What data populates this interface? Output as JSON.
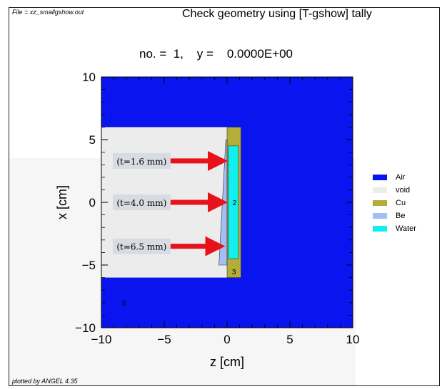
{
  "file_label": "File = xz_smallgshow.out",
  "plotted_by": "plotted by ANGEL 4.35",
  "title": "Check geometry using [T-gshow] tally",
  "subtitle": "no. =  1,    y =    0.0000E+00",
  "chart_data": {
    "type": "heatmap",
    "title": "Check geometry using [T-gshow] tally",
    "xlabel": "z [cm]",
    "ylabel": "x [cm]",
    "xlim": [
      -10,
      10
    ],
    "ylim": [
      -10,
      10
    ],
    "xticks": [
      -10,
      -5,
      0,
      5,
      10
    ],
    "yticks": [
      -10,
      -5,
      0,
      5,
      10
    ],
    "xtick_labels": [
      "−10",
      "−5",
      "0",
      "5",
      "10"
    ],
    "ytick_labels": [
      "−10",
      "−5",
      "0",
      "5",
      "10"
    ],
    "legend_position": "right",
    "legend": [
      {
        "name": "Air",
        "color": "#0a14ee"
      },
      {
        "name": "void",
        "color": "#ececec"
      },
      {
        "name": "Cu",
        "color": "#b5ad3a"
      },
      {
        "name": "Be",
        "color": "#a3bef7"
      },
      {
        "name": "Water",
        "color": "#10f0f0"
      }
    ],
    "regions": [
      {
        "material": "Air",
        "color": "#0a14ee",
        "z": [
          -10,
          10
        ],
        "x": [
          -10,
          10
        ]
      },
      {
        "material": "void",
        "color": "#ececec",
        "z": [
          -10,
          0
        ],
        "x": [
          -6,
          6
        ]
      },
      {
        "material": "Cu",
        "color": "#b5ad3a",
        "z": [
          0,
          1.1
        ],
        "x": [
          -6,
          6
        ]
      },
      {
        "material": "Water",
        "color": "#10f0f0",
        "z": [
          0.1,
          0.9
        ],
        "x": [
          -4.5,
          4.5
        ]
      }
    ],
    "be_wedge": {
      "material": "Be",
      "color": "#a3bef7",
      "points": [
        [
          -0.65,
          -5
        ],
        [
          0,
          -5
        ],
        [
          0,
          5
        ],
        [
          -0.1,
          5
        ]
      ]
    },
    "cell_labels": [
      {
        "text": "2",
        "z": 0.6,
        "x": 0
      },
      {
        "text": "3",
        "z": 0.55,
        "x": -5.5
      },
      {
        "text": "5",
        "z": -8.2,
        "x": -8
      }
    ],
    "annotations": [
      {
        "text": "(t=1.6 mm)",
        "z_start": -9.1,
        "z_end": -4.5,
        "x": 3.3,
        "arrow_from": -4.5,
        "arrow_to": -0.2
      },
      {
        "text": "(t=4.0 mm)",
        "z_start": -9.1,
        "z_end": -4.5,
        "x": 0,
        "arrow_from": -4.5,
        "arrow_to": -0.2
      },
      {
        "text": "(t=6.5 mm)",
        "z_start": -9.1,
        "z_end": -4.5,
        "x": -3.5,
        "arrow_from": -4.5,
        "arrow_to": -0.4
      }
    ]
  }
}
